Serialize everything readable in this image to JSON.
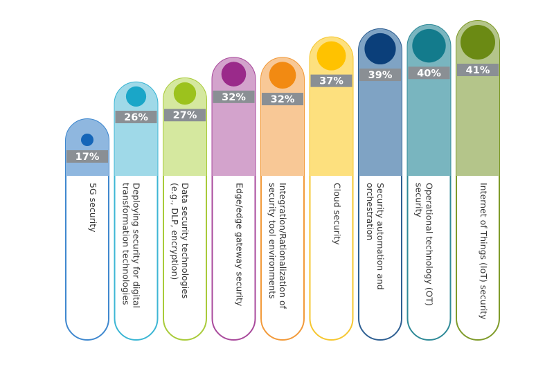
{
  "chart_data": {
    "type": "bar",
    "categories": [
      [
        "5G security"
      ],
      [
        "Deploying security for digital",
        "transformation technologies"
      ],
      [
        "Data security technologies",
        "(e.g., DLP, encryption)"
      ],
      [
        "Edge/edge gateway security"
      ],
      [
        "Integration/Rationalization of",
        "security tool environments"
      ],
      [
        "Cloud security"
      ],
      [
        "Security automation and",
        "orchestration"
      ],
      [
        "Operational technology (OT)",
        "security"
      ],
      [
        "Internet of Things (IoT) security"
      ]
    ],
    "values": [
      17,
      26,
      27,
      32,
      32,
      37,
      39,
      40,
      41
    ],
    "value_labels": [
      "17%",
      "26%",
      "27%",
      "32%",
      "32%",
      "37%",
      "39%",
      "40%",
      "41%"
    ],
    "colors": [
      {
        "dot": "#1565b8",
        "light": "#8fb7df",
        "border": "#3f88cf"
      },
      {
        "dot": "#1aa6c8",
        "light": "#9fd9e8",
        "border": "#3cb6d4"
      },
      {
        "dot": "#9cc21d",
        "light": "#d5e89f",
        "border": "#a9cb3a"
      },
      {
        "dot": "#9a2a8a",
        "light": "#d3a3cc",
        "border": "#a94a9c"
      },
      {
        "dot": "#f28a12",
        "light": "#f8c896",
        "border": "#f29a3a"
      },
      {
        "dot": "#ffc200",
        "light": "#fde07e",
        "border": "#f6c730"
      },
      {
        "dot": "#0b3f7a",
        "light": "#7fa3c4",
        "border": "#2e5f92"
      },
      {
        "dot": "#137b8c",
        "light": "#79b5bf",
        "border": "#2f8a98"
      },
      {
        "dot": "#6b8a14",
        "light": "#b4c58a",
        "border": "#7f9b2a"
      }
    ],
    "value_band_color": "#8a8f94",
    "ylim": [
      0,
      41
    ]
  }
}
